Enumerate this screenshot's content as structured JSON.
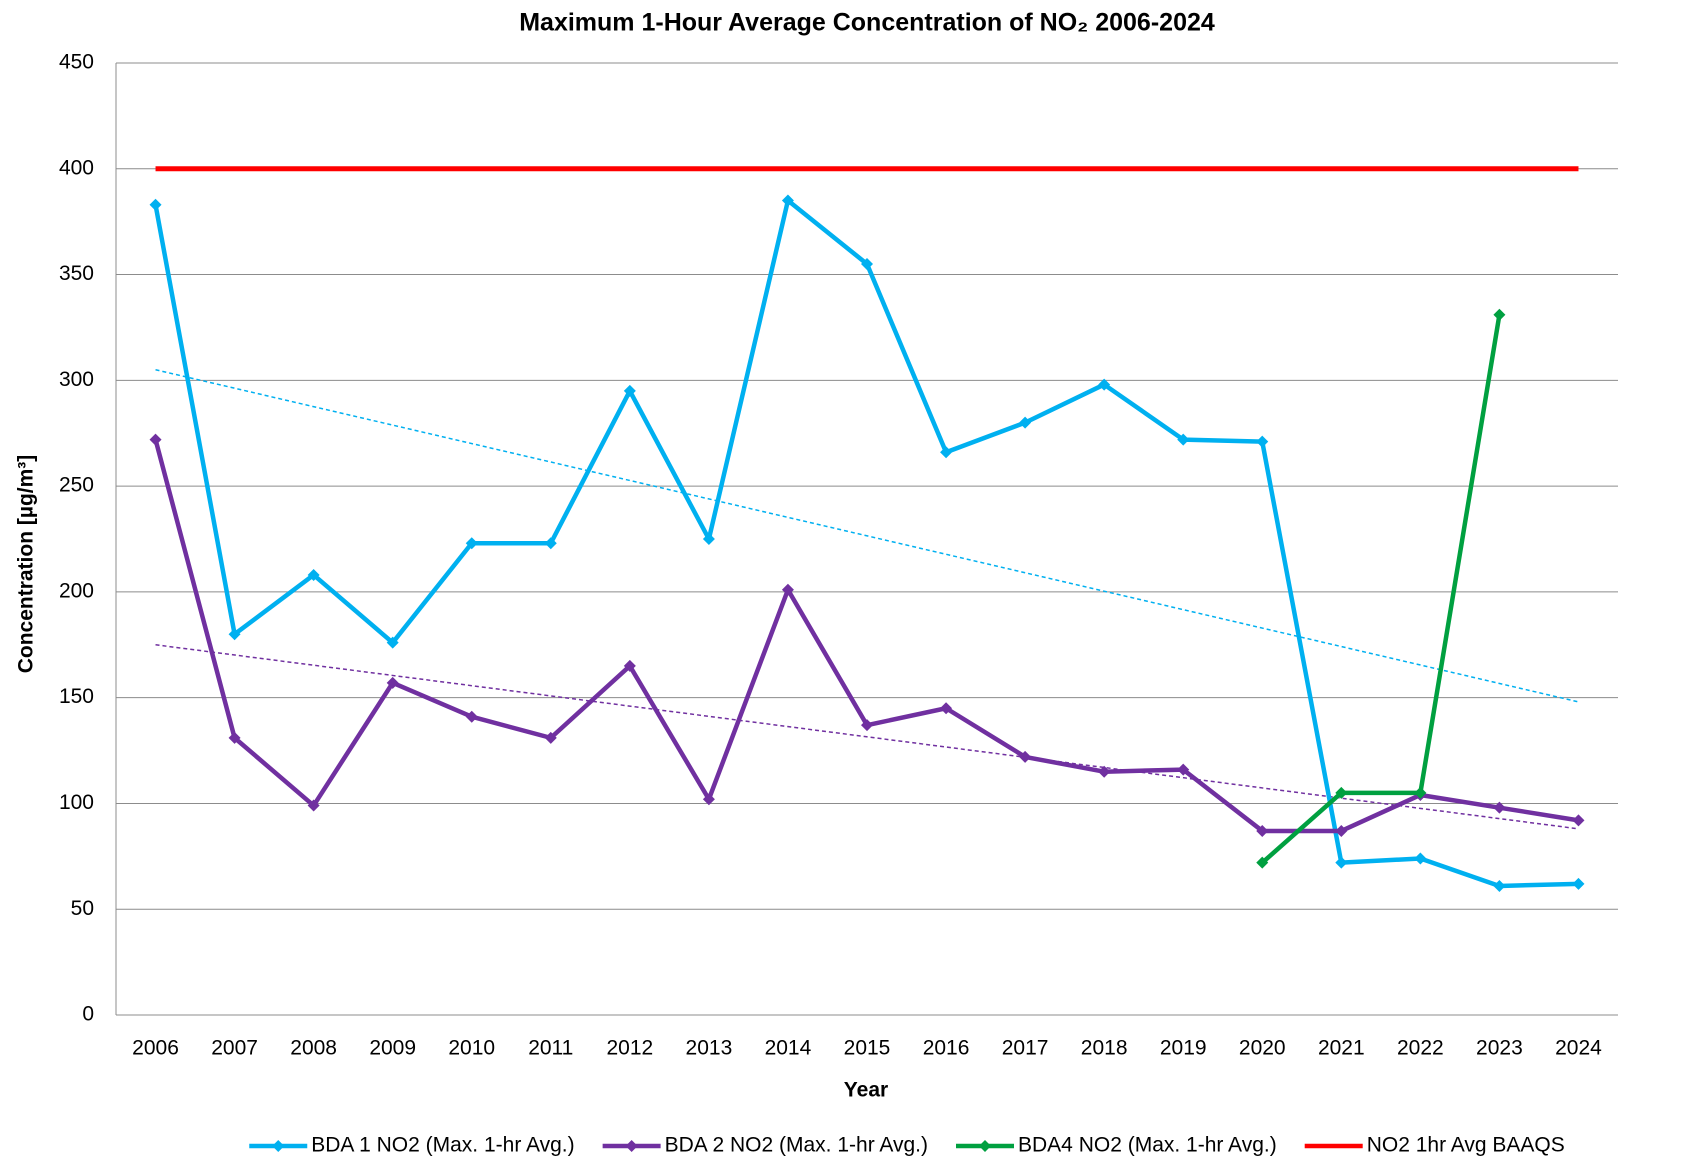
{
  "chart_data": {
    "type": "line",
    "title": "Maximum 1-Hour Average Concentration of NO₂ 2006-2024",
    "x_label": "Year",
    "y_label": "Concentration [µg/m³]",
    "categories": [
      "2006",
      "2007",
      "2008",
      "2009",
      "2010",
      "2011",
      "2012",
      "2013",
      "2014",
      "2015",
      "2016",
      "2017",
      "2018",
      "2019",
      "2020",
      "2021",
      "2022",
      "2023",
      "2024"
    ],
    "series": [
      {
        "name": "BDA 1 NO2 (Max. 1-hr Avg.)",
        "color": "#00b0f0",
        "marker": "diamond",
        "values": [
          383,
          180,
          208,
          176,
          223,
          223,
          295,
          225,
          385,
          355,
          266,
          280,
          298,
          272,
          271,
          72,
          74,
          61,
          62
        ]
      },
      {
        "name": "BDA 2 NO2 (Max. 1-hr Avg.)",
        "color": "#7030a0",
        "marker": "diamond",
        "values": [
          272,
          131,
          99,
          157,
          141,
          131,
          165,
          102,
          201,
          137,
          145,
          122,
          115,
          116,
          87,
          87,
          104,
          98,
          92
        ]
      },
      {
        "name": "BDA4 NO2 (Max. 1-hr Avg.)",
        "color": "#00a040",
        "marker": "diamond",
        "values": [
          null,
          null,
          null,
          null,
          null,
          null,
          null,
          null,
          null,
          null,
          null,
          null,
          null,
          null,
          72,
          105,
          105,
          331,
          null
        ]
      },
      {
        "name": "NO2 1hr Avg BAAQS",
        "color": "#ff0000",
        "marker": "none",
        "values": [
          400,
          400,
          400,
          400,
          400,
          400,
          400,
          400,
          400,
          400,
          400,
          400,
          400,
          400,
          400,
          400,
          400,
          400,
          400
        ]
      }
    ],
    "trendlines": [
      {
        "color": "#00b0f0",
        "values": [
          305,
          148
        ]
      },
      {
        "color": "#7030a0",
        "values": [
          175,
          88
        ]
      }
    ],
    "ylim": [
      0,
      450
    ],
    "yticks": [
      0,
      50,
      100,
      150,
      200,
      250,
      300,
      350,
      400,
      450
    ],
    "grid": true,
    "legend": "bottom"
  }
}
